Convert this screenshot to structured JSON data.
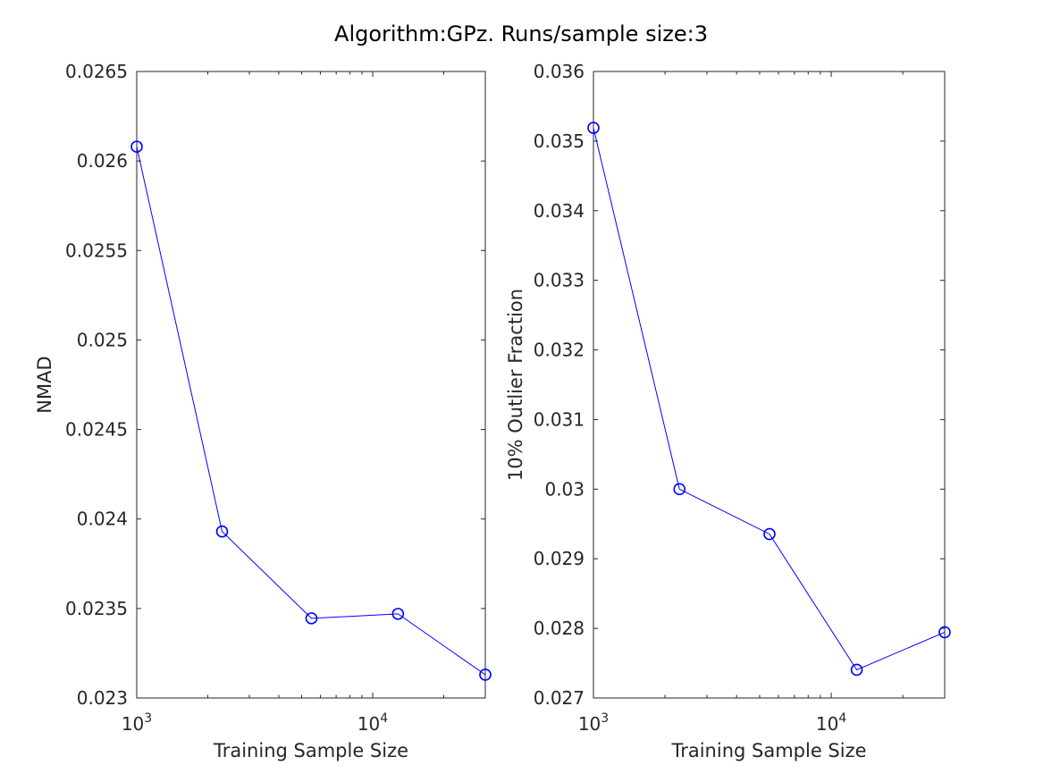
{
  "figure": {
    "title": "Algorithm:GPz. Runs/sample size:3"
  },
  "colors": {
    "series": "#0000ff",
    "axes": "#262626",
    "background": "#ffffff"
  },
  "chart_data": [
    {
      "type": "line",
      "marker": "circle",
      "xscale": "log",
      "xlabel": "Training Sample Size",
      "ylabel": "NMAD",
      "xlim": [
        1000,
        30000
      ],
      "ylim": [
        0.023,
        0.0265
      ],
      "yticks": [
        "0.023",
        "0.0235",
        "0.024",
        "0.0245",
        "0.025",
        "0.0255",
        "0.026",
        "0.0265"
      ],
      "xticks": [
        {
          "base": "10",
          "exp": "3",
          "value": 1000
        },
        {
          "base": "10",
          "exp": "4",
          "value": 10000
        }
      ],
      "grid": false,
      "series": [
        {
          "x": [
            1000,
            2300,
            5500,
            12800,
            30000
          ],
          "y": [
            0.02608,
            0.02393,
            0.023445,
            0.02347,
            0.02313
          ]
        }
      ]
    },
    {
      "type": "line",
      "marker": "circle",
      "xscale": "log",
      "xlabel": "Training Sample Size",
      "ylabel": "10% Outlier Fraction",
      "xlim": [
        1000,
        30000
      ],
      "ylim": [
        0.027,
        0.036
      ],
      "yticks": [
        "0.027",
        "0.028",
        "0.029",
        "0.03",
        "0.031",
        "0.032",
        "0.033",
        "0.034",
        "0.035",
        "0.036"
      ],
      "xticks": [
        {
          "base": "10",
          "exp": "3",
          "value": 1000
        },
        {
          "base": "10",
          "exp": "4",
          "value": 10000
        }
      ],
      "grid": false,
      "series": [
        {
          "x": [
            1000,
            2300,
            5500,
            12800,
            30000
          ],
          "y": [
            0.03519,
            0.03,
            0.029355,
            0.027405,
            0.027945
          ]
        }
      ]
    }
  ]
}
